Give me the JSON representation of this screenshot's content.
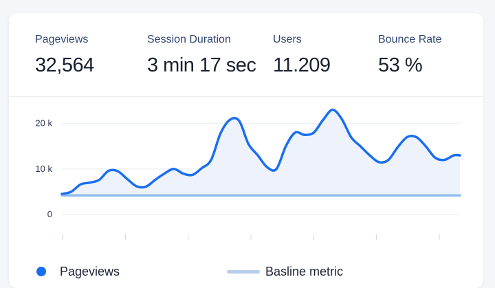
{
  "metrics": [
    {
      "label": "Pageviews",
      "value": "32,564"
    },
    {
      "label": "Session Duration",
      "value": "3 min 17 sec"
    },
    {
      "label": "Users",
      "value": "11.209"
    },
    {
      "label": "Bounce Rate",
      "value": "53 %"
    }
  ],
  "legend": {
    "pageviews": "Pageviews",
    "baseline": "Basline metric"
  },
  "colors": {
    "pageviews_line": "#1a6ef0",
    "baseline_line": "#8fbcee",
    "area_fill": "#eef3fb",
    "grid": "#e6ebf2"
  },
  "chart_data": {
    "type": "line",
    "title": "",
    "xlabel": "",
    "ylabel": "",
    "ylim": [
      0,
      26000
    ],
    "y_ticks": [
      {
        "value": 0,
        "label": "0"
      },
      {
        "value": 10000,
        "label": "10 k"
      },
      {
        "value": 20000,
        "label": "20 k"
      }
    ],
    "x_tick_count": 7,
    "x_range": [
      0,
      64
    ],
    "grid": true,
    "series": [
      {
        "name": "Pageviews",
        "x": [
          0,
          1.5,
          3,
          4.5,
          6,
          7.5,
          9,
          10.5,
          12,
          13.5,
          15,
          16.5,
          18,
          19.5,
          21,
          22.5,
          24,
          25.5,
          27,
          28.5,
          30,
          31.5,
          33,
          34.5,
          36,
          37.5,
          39,
          40.5,
          42,
          43.5,
          45,
          46.5,
          48,
          49.5,
          51,
          52.5,
          54,
          55.5,
          57,
          58.5,
          60,
          61.5,
          63,
          64
        ],
        "values": [
          4500,
          5000,
          6600,
          7000,
          7600,
          9600,
          9500,
          7800,
          6200,
          6100,
          7600,
          9000,
          10000,
          9000,
          8700,
          10200,
          12000,
          17800,
          20800,
          20600,
          15500,
          13000,
          10400,
          10000,
          15000,
          18000,
          17500,
          18000,
          20800,
          23000,
          21000,
          17000,
          15000,
          13000,
          11500,
          12000,
          14800,
          17000,
          17000,
          15000,
          12500,
          12000,
          13000,
          13000
        ]
      },
      {
        "name": "Basline metric",
        "x": [
          0,
          64
        ],
        "values": [
          4200,
          4200
        ]
      }
    ]
  }
}
